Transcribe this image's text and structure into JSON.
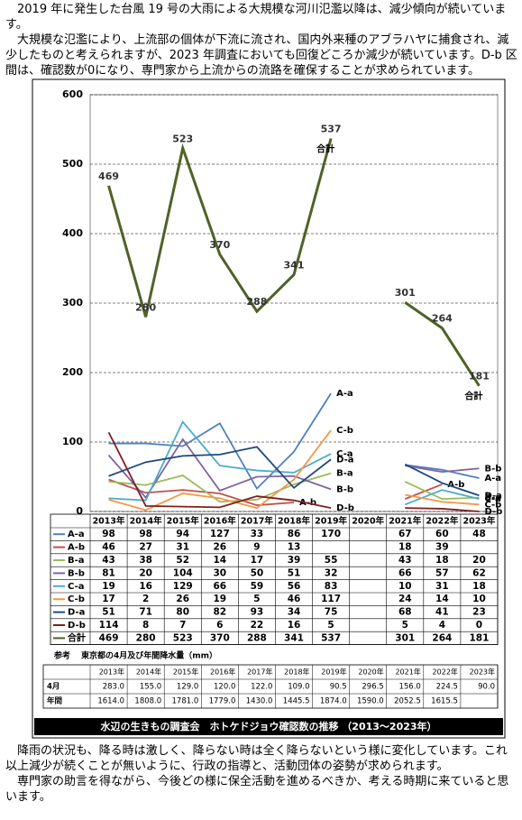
{
  "intro": [
    "2019 年に発生した台風 19 号の大雨による大規模な河川氾濫以降は、減少傾向が続いています。",
    "大規模な氾濫により、上流部の個体が下流に流され、国内外来種のアブラハヤに捕食され、減少したものと考えられますが、2023 年調査においても回復どころか減少が続いています。D-b 区間は、確認数が0になり、専門家から上流からの流路を確保することが求められています。"
  ],
  "chart_data": {
    "type": "line",
    "total_label": "合計",
    "categories": [
      "2013年",
      "2014年",
      "2015年",
      "2016年",
      "2017年",
      "2018年",
      "2019年",
      "2020年",
      "2021年",
      "2022年",
      "2023年"
    ],
    "series": [
      {
        "name": "A-a",
        "color": "#4f81bd",
        "values": [
          98,
          98,
          94,
          127,
          33,
          86,
          170,
          null,
          67,
          60,
          48
        ]
      },
      {
        "name": "A-b",
        "color": "#c0504d",
        "values": [
          46,
          27,
          31,
          26,
          9,
          13,
          null,
          null,
          18,
          39,
          null
        ]
      },
      {
        "name": "B-a",
        "color": "#9bbb59",
        "values": [
          43,
          38,
          52,
          14,
          17,
          39,
          55,
          null,
          43,
          18,
          20
        ]
      },
      {
        "name": "B-b",
        "color": "#8064a2",
        "values": [
          81,
          20,
          104,
          30,
          50,
          51,
          32,
          null,
          66,
          57,
          62
        ]
      },
      {
        "name": "C-a",
        "color": "#4bacc6",
        "values": [
          19,
          16,
          129,
          66,
          59,
          56,
          83,
          null,
          10,
          31,
          18
        ]
      },
      {
        "name": "C-b",
        "color": "#f79646",
        "values": [
          17,
          2,
          26,
          19,
          5,
          46,
          117,
          null,
          24,
          14,
          10
        ]
      },
      {
        "name": "D-a",
        "color": "#1f497d",
        "values": [
          51,
          71,
          80,
          82,
          93,
          34,
          75,
          null,
          68,
          41,
          23
        ]
      },
      {
        "name": "D-b",
        "color": "#7f1f1f",
        "values": [
          114,
          8,
          7,
          6,
          22,
          16,
          5,
          null,
          5,
          4,
          0
        ]
      },
      {
        "name": "合計",
        "color": "#4f6228",
        "values": [
          469,
          280,
          523,
          370,
          288,
          341,
          537,
          null,
          301,
          264,
          181
        ]
      }
    ],
    "ylim": [
      0,
      600
    ],
    "yticks": [
      0,
      100,
      200,
      300,
      400,
      500,
      600
    ],
    "grid": true
  },
  "reference": {
    "title": "参考",
    "subtitle": "東京都の4月及び年間降水量（mm）",
    "columns": [
      "2013年",
      "2014年",
      "2015年",
      "2016年",
      "2017年",
      "2018年",
      "2019年",
      "2020年",
      "2021年",
      "2022年",
      "2023年"
    ],
    "rows": [
      {
        "label": "4月",
        "values": [
          "283.0",
          "155.0",
          "129.0",
          "120.0",
          "122.0",
          "109.0",
          "90.5",
          "296.5",
          "156.0",
          "224.5",
          "90.0"
        ]
      },
      {
        "label": "年間",
        "values": [
          "1614.0",
          "1808.0",
          "1781.0",
          "1779.0",
          "1430.0",
          "1445.5",
          "1874.0",
          "1590.0",
          "2052.5",
          "1615.5",
          null
        ]
      }
    ]
  },
  "caption": "水辺の生きもの調査会　ホトケドジョウ確認数の推移 （2013～2023年）",
  "outro": [
    "降雨の状況も、降る時は激しく、降らない時は全く降らないという様に変化しています。これ以上減少が続くことが無いように、行政の指導と、活動団体の姿勢が求められます。",
    "専門家の助言を得ながら、今後どの様に保全活動を進めるべきか、考える時期に来ていると思います。"
  ]
}
